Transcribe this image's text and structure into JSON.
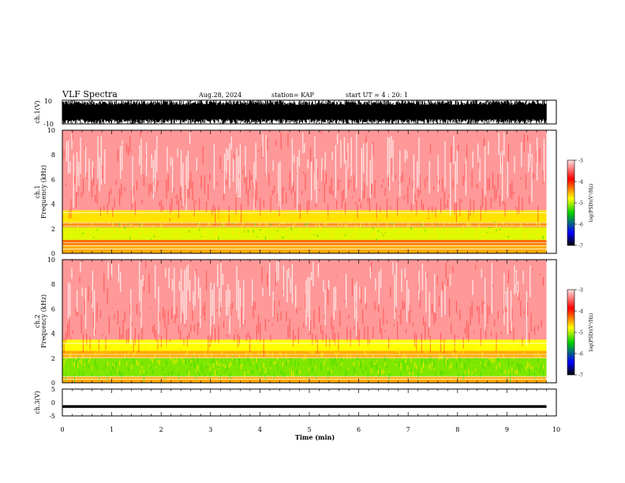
{
  "header": {
    "title": "VLF Spectra",
    "date": "Aug.28, 2024",
    "station": "station= KAP",
    "start_ut": "start  UT =   4 : 20: 1"
  },
  "colorbar": {
    "label": "log(PSD)(V²/Hz)",
    "ticks": [
      "-3",
      "-4",
      "-5",
      "-6",
      "-7"
    ],
    "colors": [
      "#ffe0e0",
      "#ff0000",
      "#ffff00",
      "#00d000",
      "#0000ff",
      "#000000"
    ]
  },
  "chart_data": [
    {
      "type": "line",
      "panel": "ch1-waveform",
      "ylabel": "ch.1(V)",
      "ylim": [
        -10,
        10
      ],
      "y_ticks": [
        "10",
        "-10"
      ],
      "xlim": [
        0,
        10
      ],
      "x_end": 9.8,
      "description_level": "dense broadband waveform spanning about -10 to 10 V"
    },
    {
      "type": "heatmap",
      "panel": "ch1-spectrogram",
      "ylabel": "ch.1",
      "ylabel2": "Frequency (kHz)",
      "ylim": [
        0,
        10
      ],
      "y_ticks": [
        "0",
        "2",
        "4",
        "6",
        "8",
        "10"
      ],
      "xlim": [
        0,
        10
      ],
      "x_end": 9.8,
      "bands_khz": [
        {
          "from": 0,
          "to": 0.7,
          "level": -4.2
        },
        {
          "from": 0.7,
          "to": 1.1,
          "level": -4.0
        },
        {
          "from": 1.1,
          "to": 2.1,
          "level": -4.6
        },
        {
          "from": 2.1,
          "to": 2.5,
          "level": -4.1
        },
        {
          "from": 2.5,
          "to": 3.5,
          "level": -4.4
        },
        {
          "from": 3.5,
          "to": 10,
          "level": -3.2
        }
      ]
    },
    {
      "type": "heatmap",
      "panel": "ch2-spectrogram",
      "ylabel": "ch.2",
      "ylabel2": "Frequency (kHz)",
      "ylim": [
        0,
        10
      ],
      "y_ticks": [
        "0",
        "2",
        "4",
        "6",
        "8",
        "10"
      ],
      "xlim": [
        0,
        10
      ],
      "x_end": 9.8,
      "bands_khz": [
        {
          "from": 0,
          "to": 0.5,
          "level": -4.2
        },
        {
          "from": 0.5,
          "to": 2.0,
          "level": -4.9
        },
        {
          "from": 2.0,
          "to": 2.6,
          "level": -4.2
        },
        {
          "from": 2.6,
          "to": 3.5,
          "level": -4.5
        },
        {
          "from": 3.5,
          "to": 10,
          "level": -3.2
        }
      ]
    },
    {
      "type": "line",
      "panel": "ch3-waveform",
      "ylabel": "ch.3(V)",
      "ylim": [
        -5,
        5
      ],
      "y_ticks": [
        "5",
        "0",
        "-5"
      ],
      "xlim": [
        0,
        10
      ],
      "x_end": 9.8,
      "level_v": -1.5
    }
  ],
  "x_axis": {
    "label": "Time (min)",
    "ticks": [
      "0",
      "1",
      "2",
      "3",
      "4",
      "5",
      "6",
      "7",
      "8",
      "9",
      "10"
    ]
  }
}
